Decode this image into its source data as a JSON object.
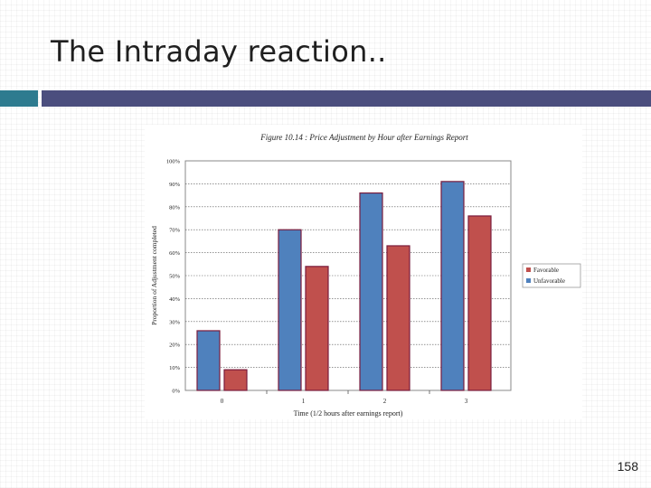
{
  "slide": {
    "title": "The Intraday reaction..",
    "page_number": "158"
  },
  "colors": {
    "accent_left": "#2e7b8f",
    "accent_right": "#4b4e7e",
    "favorable": "#c0504d",
    "unfavorable": "#4f81bd",
    "bar_outline": "#7a1c3c"
  },
  "chart_data": {
    "type": "bar",
    "title": "Figure 10.14 : Price Adjustment by Hour after Earnings Report",
    "xlabel": "Time (1/2 hours after earnings report)",
    "ylabel": "Proportion of Adjustment completed",
    "categories": [
      "0",
      "1",
      "2",
      "3"
    ],
    "ylim": [
      0,
      100
    ],
    "yticks": [
      "0%",
      "10%",
      "20%",
      "30%",
      "40%",
      "50%",
      "60%",
      "70%",
      "80%",
      "90%",
      "100%"
    ],
    "grid": true,
    "legend": "right",
    "series": [
      {
        "name": "Unfavorable",
        "values": [
          26,
          70,
          86,
          91
        ]
      },
      {
        "name": "Favorable",
        "values": [
          9,
          54,
          63,
          76
        ]
      }
    ]
  }
}
